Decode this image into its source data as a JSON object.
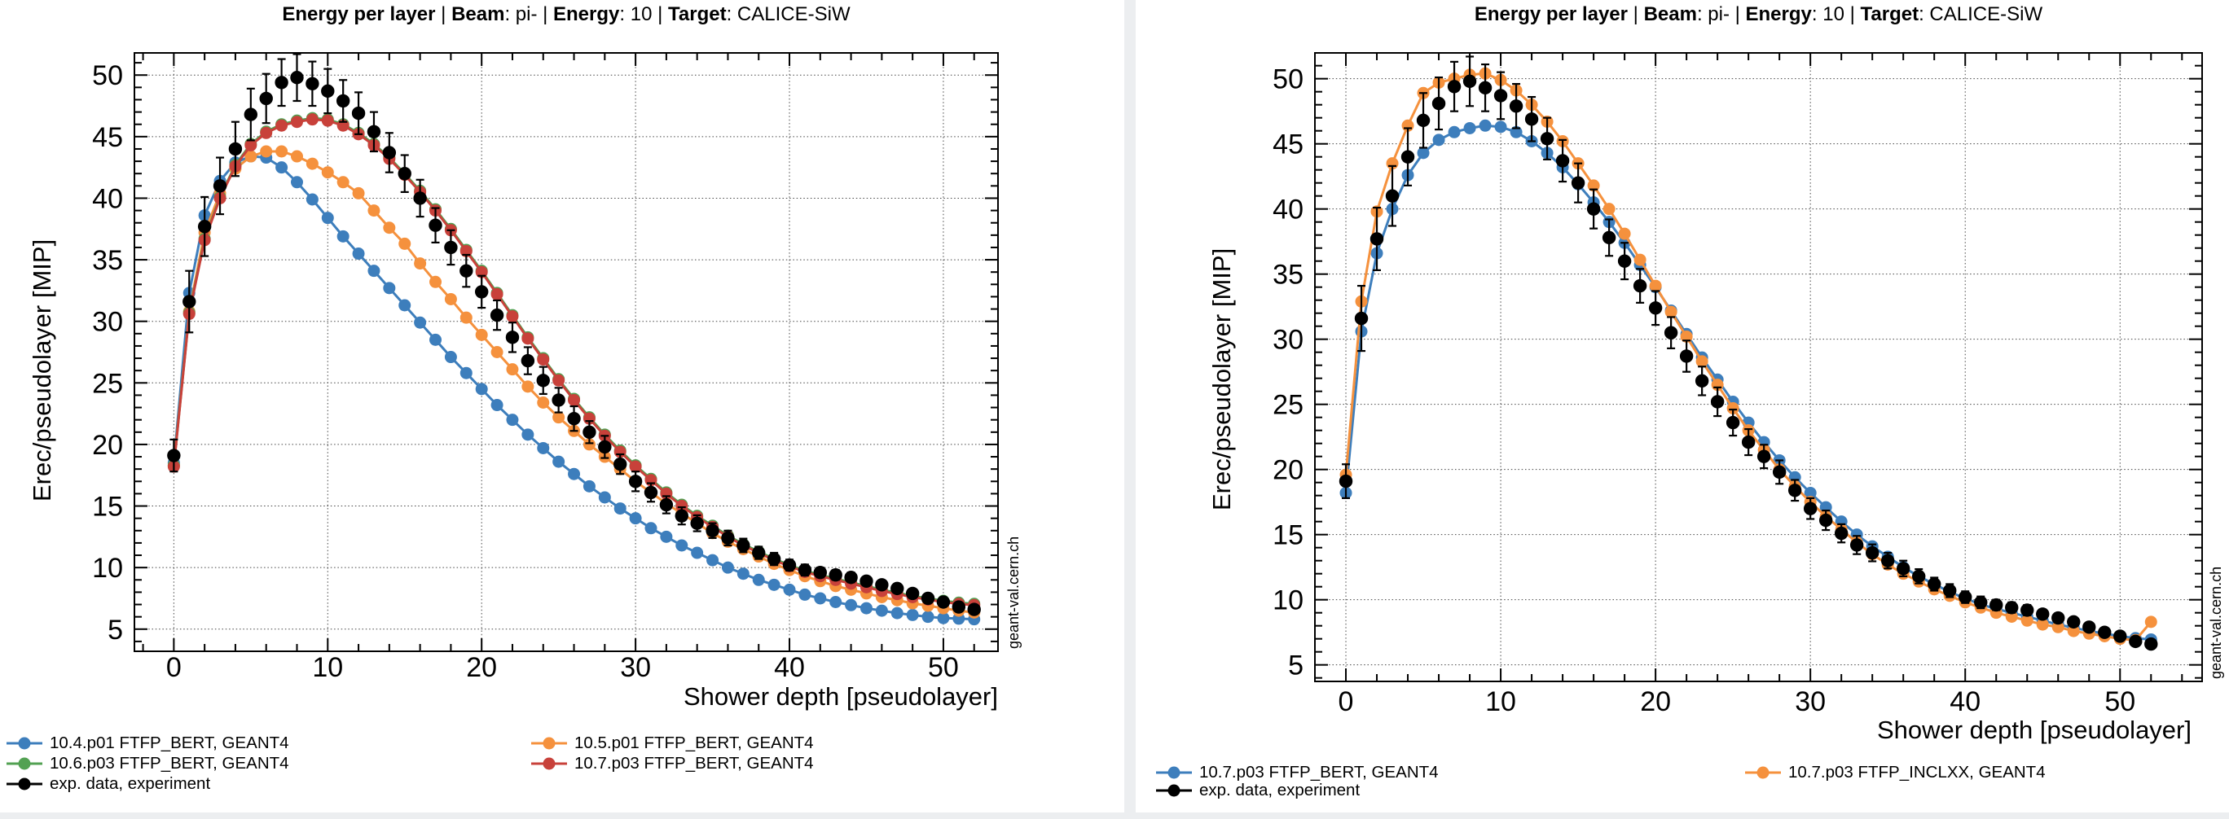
{
  "watermark": "geant-val.cern.ch",
  "colors": {
    "blue": "#3d7ebc",
    "orange": "#f5913d",
    "green": "#52a152",
    "red": "#c8413a",
    "black": "#000000"
  },
  "panels": [
    {
      "title_segments": [
        {
          "text": "Energy per layer ",
          "bold": true
        },
        {
          "text": " | ",
          "bold": false
        },
        {
          "text": "Beam",
          "bold": true
        },
        {
          "text": ": pi- | ",
          "bold": false
        },
        {
          "text": "Energy",
          "bold": true
        },
        {
          "text": ": 10 | ",
          "bold": false
        },
        {
          "text": "Target",
          "bold": true
        },
        {
          "text": ": CALICE-SiW",
          "bold": false
        }
      ],
      "watermark": "geant-val.cern.ch",
      "chart_data": {
        "type": "line",
        "title": "Energy per layer | Beam: pi- | Energy: 10 | Target: CALICE-SiW",
        "xlabel": "Shower depth [pseudolayer]",
        "ylabel": "Erec/pseudolayer [MIP]",
        "xlim": [
          -2.56,
          53.55
        ],
        "ylim": [
          3.2,
          51.8
        ],
        "xticks": [
          0,
          10,
          20,
          30,
          40,
          50
        ],
        "yticks": [
          5,
          10,
          15,
          20,
          25,
          30,
          35,
          40,
          45,
          50
        ],
        "x_minor_step": 2,
        "y_minor_step": 1,
        "grid": "dotted",
        "legend_position": "below",
        "x": [
          0,
          1,
          2,
          3,
          4,
          5,
          6,
          7,
          8,
          9,
          10,
          11,
          12,
          13,
          14,
          15,
          16,
          17,
          18,
          19,
          20,
          21,
          22,
          23,
          24,
          25,
          26,
          27,
          28,
          29,
          30,
          31,
          32,
          33,
          34,
          35,
          36,
          37,
          38,
          39,
          40,
          41,
          42,
          43,
          44,
          45,
          46,
          47,
          48,
          49,
          50,
          51,
          52
        ],
        "series": [
          {
            "name": "10.4.p01 FTFP_BERT, GEANT4",
            "color": "#3d7ebc",
            "marker": "circle",
            "line": true,
            "values": [
              18.5,
              32.3,
              38.6,
              41.4,
              42.9,
              43.4,
              43.3,
              42.5,
              41.3,
              39.9,
              38.4,
              36.9,
              35.5,
              34.1,
              32.7,
              31.3,
              29.9,
              28.5,
              27.1,
              25.8,
              24.5,
              23.2,
              22.0,
              20.8,
              19.7,
              18.6,
              17.6,
              16.6,
              15.7,
              14.8,
              14.0,
              13.2,
              12.5,
              11.8,
              11.2,
              10.6,
              10.0,
              9.5,
              9.0,
              8.6,
              8.2,
              7.8,
              7.5,
              7.2,
              6.95,
              6.7,
              6.5,
              6.3,
              6.15,
              6.0,
              5.9,
              5.85,
              5.8
            ]
          },
          {
            "name": "10.5.p01 FTFP_BERT, GEANT4",
            "color": "#f5913d",
            "marker": "circle",
            "line": true,
            "values": [
              18.3,
              30.8,
              37.2,
              40.4,
              42.4,
              43.4,
              43.8,
              43.8,
              43.4,
              42.8,
              42.1,
              41.3,
              40.4,
              39.0,
              37.6,
              36.3,
              34.7,
              33.2,
              31.8,
              30.3,
              28.9,
              27.5,
              26.1,
              24.7,
              23.4,
              22.2,
              21.1,
              20.0,
              19.0,
              18.0,
              17.0,
              16.1,
              15.2,
              14.4,
              13.6,
              12.8,
              12.1,
              11.5,
              10.9,
              10.3,
              9.8,
              9.3,
              8.9,
              8.5,
              8.2,
              7.9,
              7.6,
              7.35,
              7.1,
              6.9,
              6.7,
              6.5,
              6.35
            ]
          },
          {
            "name": "10.6.p03 FTFP_BERT, GEANT4",
            "color": "#52a152",
            "marker": "circle",
            "line": true,
            "values": [
              18.3,
              30.7,
              36.7,
              40.1,
              42.7,
              44.4,
              45.4,
              46.0,
              46.3,
              46.5,
              46.4,
              46.0,
              45.3,
              44.4,
              43.3,
              42.0,
              40.6,
              39.1,
              37.5,
              35.8,
              34.1,
              32.3,
              30.5,
              28.7,
              27.0,
              25.3,
              23.7,
              22.2,
              20.8,
              19.5,
              18.3,
              17.2,
              16.1,
              15.1,
              14.2,
              13.4,
              12.6,
              11.9,
              11.3,
              10.7,
              10.2,
              9.75,
              9.4,
              9.1,
              8.8,
              8.5,
              8.2,
              7.95,
              7.7,
              7.5,
              7.3,
              7.15,
              7.05
            ]
          },
          {
            "name": "10.7.p03 FTFP_BERT, GEANT4",
            "color": "#c8413a",
            "marker": "circle",
            "line": true,
            "values": [
              18.2,
              30.6,
              36.6,
              40.0,
              42.6,
              44.3,
              45.3,
              45.9,
              46.2,
              46.4,
              46.3,
              45.9,
              45.2,
              44.3,
              43.2,
              41.9,
              40.5,
              39.0,
              37.4,
              35.7,
              34.0,
              32.2,
              30.4,
              28.6,
              26.9,
              25.2,
              23.6,
              22.1,
              20.7,
              19.4,
              18.2,
              17.1,
              16.0,
              15.0,
              14.1,
              13.3,
              12.5,
              11.8,
              11.2,
              10.6,
              10.1,
              9.65,
              9.3,
              9.0,
              8.7,
              8.4,
              8.1,
              7.85,
              7.6,
              7.4,
              7.2,
              7.05,
              6.95
            ]
          },
          {
            "name": "exp. data, experiment",
            "color": "#000000",
            "marker": "circle",
            "line": false,
            "values": [
              19.1,
              31.6,
              37.7,
              41.0,
              44.0,
              46.8,
              48.1,
              49.4,
              49.8,
              49.3,
              48.7,
              47.9,
              46.9,
              45.4,
              43.7,
              42.0,
              40.0,
              37.8,
              36.0,
              34.1,
              32.4,
              30.5,
              28.7,
              26.8,
              25.2,
              23.6,
              22.1,
              21.0,
              19.8,
              18.4,
              17.0,
              16.1,
              15.1,
              14.2,
              13.6,
              13.0,
              12.4,
              11.8,
              11.2,
              10.7,
              10.2,
              9.8,
              9.6,
              9.4,
              9.2,
              8.9,
              8.6,
              8.3,
              7.9,
              7.5,
              7.2,
              6.8,
              6.6
            ],
            "errors": [
              1.3,
              2.5,
              2.4,
              2.3,
              2.2,
              2.1,
              2.0,
              1.9,
              1.9,
              1.8,
              1.8,
              1.7,
              1.7,
              1.6,
              1.6,
              1.5,
              1.5,
              1.4,
              1.4,
              1.3,
              1.3,
              1.2,
              1.2,
              1.1,
              1.1,
              1.0,
              1.0,
              0.9,
              0.9,
              0.8,
              0.8,
              0.75,
              0.7,
              0.7,
              0.65,
              0.6,
              0.6,
              0.55,
              0.5,
              0.5,
              0.45,
              0.45,
              0.4,
              0.4,
              0.4,
              0.35,
              0.35,
              0.3,
              0.3,
              0.3,
              0.3,
              0.25,
              0.25
            ]
          }
        ]
      },
      "legend": [
        {
          "series": 0,
          "col": 0
        },
        {
          "series": 2,
          "col": 0
        },
        {
          "series": 4,
          "col": 0
        },
        {
          "series": 1,
          "col": 1
        },
        {
          "series": 3,
          "col": 1
        }
      ]
    },
    {
      "title_segments": [
        {
          "text": "Energy per layer ",
          "bold": true
        },
        {
          "text": " | ",
          "bold": false
        },
        {
          "text": "Beam",
          "bold": true
        },
        {
          "text": ": pi- | ",
          "bold": false
        },
        {
          "text": "Energy",
          "bold": true
        },
        {
          "text": ": 10 | ",
          "bold": false
        },
        {
          "text": "Target",
          "bold": true
        },
        {
          "text": ": CALICE-SiW",
          "bold": false
        }
      ],
      "watermark": "geant-val.cern.ch",
      "chart_data": {
        "type": "line",
        "title": "Energy per layer | Beam: pi- | Energy: 10 | Target: CALICE-SiW",
        "xlabel": "Shower depth [pseudolayer]",
        "ylabel": "Erec/pseudolayer [MIP]",
        "xlim": [
          -2.0,
          55.3
        ],
        "ylim": [
          3.73,
          51.98
        ],
        "xticks": [
          0,
          10,
          20,
          30,
          40,
          50
        ],
        "yticks": [
          5,
          10,
          15,
          20,
          25,
          30,
          35,
          40,
          45,
          50
        ],
        "x_minor_step": 2,
        "y_minor_step": 1,
        "grid": "dotted",
        "legend_position": "below",
        "x": [
          0,
          1,
          2,
          3,
          4,
          5,
          6,
          7,
          8,
          9,
          10,
          11,
          12,
          13,
          14,
          15,
          16,
          17,
          18,
          19,
          20,
          21,
          22,
          23,
          24,
          25,
          26,
          27,
          28,
          29,
          30,
          31,
          32,
          33,
          34,
          35,
          36,
          37,
          38,
          39,
          40,
          41,
          42,
          43,
          44,
          45,
          46,
          47,
          48,
          49,
          50,
          51,
          52
        ],
        "series": [
          {
            "name": "10.7.p03 FTFP_BERT, GEANT4",
            "color": "#3d7ebc",
            "marker": "circle",
            "line": true,
            "values": [
              18.2,
              30.6,
              36.6,
              40.0,
              42.6,
              44.3,
              45.3,
              45.9,
              46.2,
              46.4,
              46.3,
              45.9,
              45.2,
              44.3,
              43.2,
              41.9,
              40.5,
              39.0,
              37.4,
              35.7,
              34.0,
              32.2,
              30.4,
              28.6,
              26.9,
              25.2,
              23.6,
              22.1,
              20.7,
              19.4,
              18.2,
              17.1,
              16.0,
              15.0,
              14.1,
              13.3,
              12.5,
              11.8,
              11.2,
              10.6,
              10.1,
              9.65,
              9.3,
              9.0,
              8.7,
              8.4,
              8.1,
              7.85,
              7.6,
              7.4,
              7.2,
              7.05,
              6.95
            ]
          },
          {
            "name": "10.7.p03 FTFP_INCLXX, GEANT4",
            "color": "#f5913d",
            "marker": "circle",
            "line": true,
            "values": [
              19.6,
              32.9,
              39.8,
              43.5,
              46.4,
              48.9,
              49.7,
              50.0,
              50.3,
              50.4,
              49.9,
              49.1,
              48.0,
              46.7,
              45.2,
              43.5,
              41.8,
              40.0,
              38.1,
              36.1,
              34.1,
              32.1,
              30.2,
              28.3,
              26.5,
              24.7,
              23.0,
              21.5,
              20.0,
              18.7,
              17.5,
              16.4,
              15.4,
              14.4,
              13.5,
              12.7,
              12.0,
              11.4,
              10.8,
              10.3,
              9.8,
              9.4,
              9.0,
              8.7,
              8.4,
              8.1,
              7.9,
              7.6,
              7.4,
              7.2,
              7.0,
              6.9,
              8.3
            ]
          },
          {
            "name": "exp. data, experiment",
            "color": "#000000",
            "marker": "circle",
            "line": false,
            "values": [
              19.1,
              31.6,
              37.7,
              41.0,
              44.0,
              46.8,
              48.1,
              49.4,
              49.8,
              49.3,
              48.7,
              47.9,
              46.9,
              45.4,
              43.7,
              42.0,
              40.0,
              37.8,
              36.0,
              34.1,
              32.4,
              30.5,
              28.7,
              26.8,
              25.2,
              23.6,
              22.1,
              21.0,
              19.8,
              18.4,
              17.0,
              16.1,
              15.1,
              14.2,
              13.6,
              13.0,
              12.4,
              11.8,
              11.2,
              10.7,
              10.2,
              9.8,
              9.6,
              9.4,
              9.2,
              8.9,
              8.6,
              8.3,
              7.9,
              7.5,
              7.2,
              6.8,
              6.6
            ],
            "errors": [
              1.3,
              2.5,
              2.4,
              2.3,
              2.2,
              2.1,
              2.0,
              1.9,
              1.9,
              1.8,
              1.8,
              1.7,
              1.7,
              1.6,
              1.6,
              1.5,
              1.5,
              1.4,
              1.4,
              1.3,
              1.3,
              1.2,
              1.2,
              1.1,
              1.1,
              1.0,
              1.0,
              0.9,
              0.9,
              0.8,
              0.8,
              0.75,
              0.7,
              0.7,
              0.65,
              0.6,
              0.6,
              0.55,
              0.5,
              0.5,
              0.45,
              0.45,
              0.4,
              0.4,
              0.4,
              0.35,
              0.35,
              0.3,
              0.3,
              0.3,
              0.3,
              0.25,
              0.25
            ]
          }
        ]
      },
      "legend": [
        {
          "series": 0,
          "col": 0
        },
        {
          "series": 2,
          "col": 0
        },
        {
          "series": 1,
          "col": 1
        }
      ]
    }
  ]
}
